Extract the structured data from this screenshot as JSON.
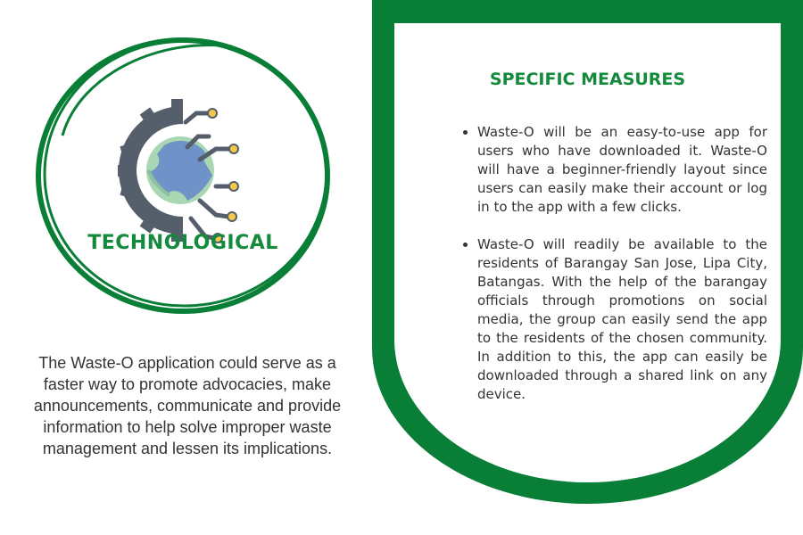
{
  "left": {
    "circle_title": "TECHNOLOGICAL",
    "description": "The Waste-O application could serve as a faster way to promote advocacies, make announcements, communicate and provide information to help solve improper waste management and lessen its implications.",
    "icon": "gear-globe-circuit-icon"
  },
  "panel": {
    "title": "SPECIFIC MEASURES",
    "measures": [
      "Waste-O will be an easy-to-use app for users who have downloaded it. Waste-O will have a beginner-friendly layout since users can easily make their account or log in to the app with a few clicks.",
      "Waste-O will readily be available to the residents of Barangay San Jose, Lipa City, Batangas. With the help of the barangay officials through promotions on social media, the group can easily send the app to the residents of the chosen community. In addition to this, the app can easily be downloaded through a shared link on any device."
    ]
  },
  "colors": {
    "brand_green": "#087e36",
    "title_green": "#138a3c",
    "gear_gray": "#555e6b",
    "globe_blue": "#6f93c8",
    "globe_green": "#a9d7b3",
    "node_yellow": "#f2c94c"
  }
}
